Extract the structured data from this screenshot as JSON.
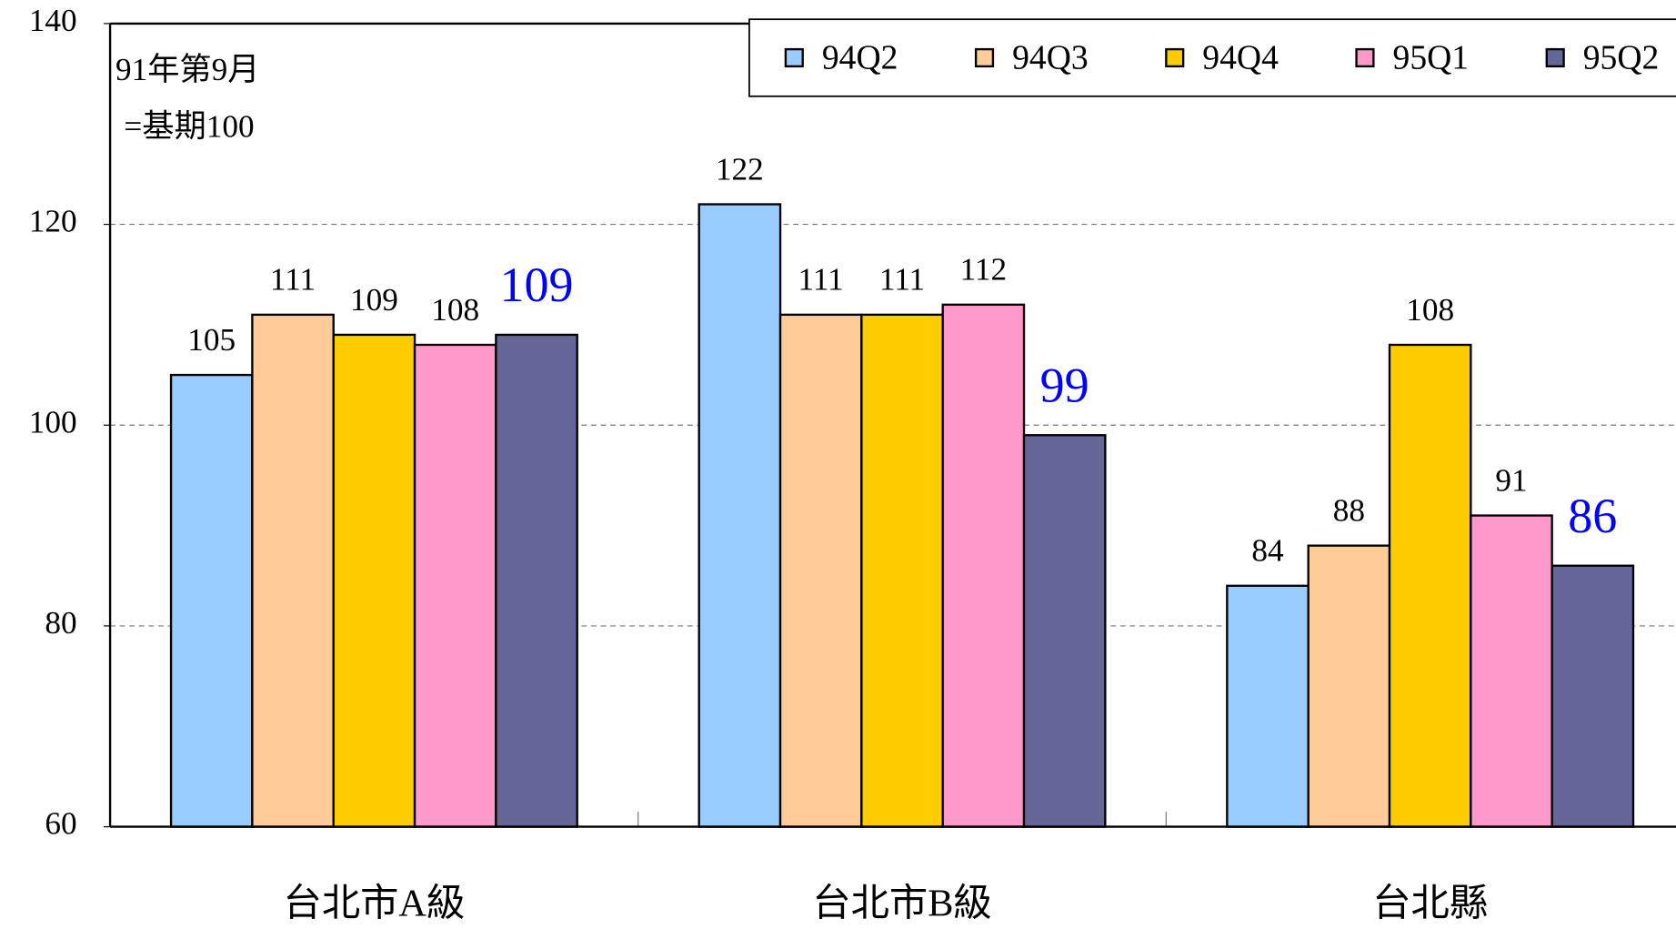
{
  "chart_data": {
    "type": "bar",
    "annotations": [
      "91年第9月",
      "=基期100"
    ],
    "categories": [
      "台北市A級",
      "台北市B級",
      "台北縣"
    ],
    "series": [
      {
        "name": "94Q2",
        "color": "#99ccff",
        "values": [
          105,
          122,
          84
        ]
      },
      {
        "name": "94Q3",
        "color": "#ffcc99",
        "values": [
          111,
          111,
          88
        ]
      },
      {
        "name": "94Q4",
        "color": "#ffcc00",
        "values": [
          109,
          111,
          108
        ]
      },
      {
        "name": "95Q1",
        "color": "#ff99cc",
        "values": [
          108,
          112,
          91
        ]
      },
      {
        "name": "95Q2",
        "color": "#666699",
        "label_color": "#0000ff",
        "values": [
          109,
          99,
          86
        ]
      }
    ],
    "ylim": [
      60,
      140
    ],
    "yticks": [
      60,
      80,
      100,
      120,
      140
    ],
    "grid": true,
    "legend": "top-right"
  }
}
